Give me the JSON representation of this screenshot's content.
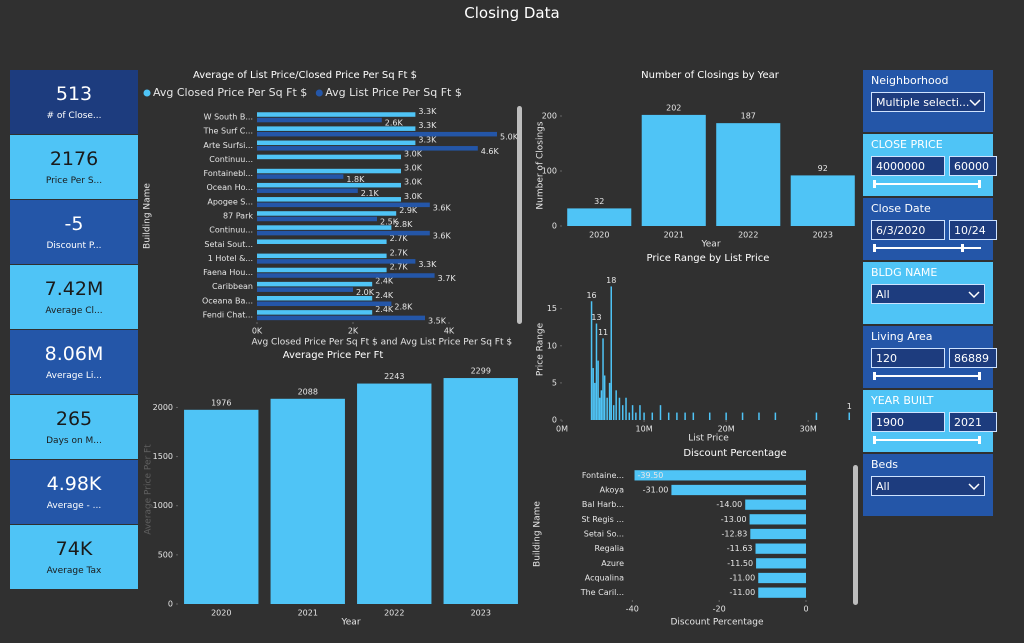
{
  "title": "Closing Data",
  "kpis": [
    {
      "value": "513",
      "label": "# of Close..."
    },
    {
      "value": "2176",
      "label": "Price Per S..."
    },
    {
      "value": "-5",
      "label": "Discount P..."
    },
    {
      "value": "7.42M",
      "label": "Average Cl..."
    },
    {
      "value": "8.06M",
      "label": "Average Li..."
    },
    {
      "value": "265",
      "label": "Days on M..."
    },
    {
      "value": "4.98K",
      "label": "Average - ..."
    },
    {
      "value": "74K",
      "label": "Average Tax"
    }
  ],
  "chart_data": [
    {
      "type": "bar",
      "orientation": "horizontal",
      "title": "Average of List Price/Closed Price Per Sq Ft $",
      "x_label": "Avg Closed Price Per Sq Ft $ and Avg List Price Per Sq Ft $",
      "y_label": "Building Name",
      "categories": [
        "W South B...",
        "The Surf C...",
        "Arte Surfsi...",
        "Continuu...",
        "Fontainebl...",
        "Ocean Ho...",
        "Apogee S...",
        "87 Park",
        "Continuu...",
        "Setai Sout...",
        "1 Hotel &...",
        "Faena Hou...",
        "Caribbean",
        "Oceana Ba...",
        "Fendi Chat..."
      ],
      "series": [
        {
          "name": "Avg Closed Price Per Sq Ft $",
          "color": "#4fc4f6",
          "values": [
            3300,
            3300,
            3300,
            3000,
            3000,
            3000,
            3000,
            2900,
            2800,
            2700,
            2700,
            2700,
            2400,
            2400,
            2400
          ],
          "value_labels": [
            "3.3K",
            "3.3K",
            "3.3K",
            "3.0K",
            "3.0K",
            "3.0K",
            "3.0K",
            "2.9K",
            "2.8K",
            "2.7K",
            "2.7K",
            "2.7K",
            "2.4K",
            "2.4K",
            "2.4K"
          ]
        },
        {
          "name": "Avg List Price Per Sq Ft $",
          "color": "#2456a8",
          "values": [
            2600,
            5000,
            4600,
            null,
            1800,
            2100,
            3600,
            2500,
            3600,
            null,
            3300,
            3700,
            2000,
            2800,
            3500
          ],
          "value_labels": [
            "2.6K",
            "5.0K",
            "4.6K",
            null,
            "1.8K",
            "2.1K",
            "3.6K",
            "2.5K",
            "3.6K",
            null,
            "3.3K",
            "3.7K",
            "2.0K",
            "2.8K",
            "3.5K"
          ]
        }
      ],
      "xlim": [
        0,
        5200
      ],
      "xticks": [
        {
          "value": 0,
          "label": "0K"
        },
        {
          "value": 2000,
          "label": "2K"
        },
        {
          "value": 4000,
          "label": "4K"
        }
      ],
      "legend": "top-left"
    },
    {
      "type": "bar",
      "orientation": "vertical",
      "title": "Average Price Per Ft",
      "x_label": "Year",
      "y_label": "Average Price Per Ft",
      "categories": [
        "2020",
        "2021",
        "2022",
        "2023"
      ],
      "values": [
        1976,
        2088,
        2243,
        2299
      ],
      "color": "#4fc4f6",
      "ylim": [
        0,
        2330
      ],
      "yticks": [
        0,
        500,
        1000,
        1500,
        2000
      ]
    },
    {
      "type": "bar",
      "orientation": "vertical",
      "title": "Number of Closings by Year",
      "x_label": "Year",
      "y_label": "Number of Closings",
      "categories": [
        "2020",
        "2021",
        "2022",
        "2023"
      ],
      "values": [
        32,
        202,
        187,
        92
      ],
      "color": "#4fc4f6",
      "ylim": [
        0,
        220
      ],
      "yticks": [
        0,
        100,
        200
      ]
    },
    {
      "type": "bar",
      "orientation": "vertical",
      "title": "Price Range by List Price",
      "x_label": "List Price",
      "y_label": "Price Range",
      "color": "#4fc4f6",
      "x": [
        3600000,
        3800000,
        4000000,
        4200000,
        4400000,
        4600000,
        4800000,
        5000000,
        5200000,
        5500000,
        5800000,
        6000000,
        6300000,
        6600000,
        7000000,
        7400000,
        7800000,
        8200000,
        8600000,
        9000000,
        9500000,
        10000000,
        11000000,
        12000000,
        13000000,
        14000000,
        15000000,
        16000000,
        18000000,
        20000000,
        22000000,
        24000000,
        26000000,
        31000000,
        35000000
      ],
      "values": [
        16,
        7,
        5,
        13,
        8,
        3,
        4,
        11,
        6,
        3,
        5,
        18,
        2,
        4,
        3,
        2,
        3,
        1,
        2,
        1,
        2,
        1,
        1,
        2,
        1,
        1,
        1,
        1,
        1,
        1,
        1,
        1,
        1,
        1,
        1
      ],
      "value_labels": [
        "16",
        null,
        null,
        "13",
        null,
        null,
        null,
        "11",
        null,
        null,
        null,
        "18",
        null,
        null,
        null,
        null,
        null,
        null,
        null,
        null,
        null,
        null,
        null,
        null,
        null,
        null,
        null,
        null,
        null,
        null,
        null,
        null,
        null,
        null,
        "1"
      ],
      "xlim": [
        0,
        35700000
      ],
      "xticks": [
        {
          "value": 0,
          "label": "0M"
        },
        {
          "value": 10000000,
          "label": "10M"
        },
        {
          "value": 20000000,
          "label": "20M"
        },
        {
          "value": 30000000,
          "label": "30M"
        }
      ],
      "ylim": [
        0,
        19
      ],
      "yticks": [
        0,
        5,
        10,
        15
      ]
    },
    {
      "type": "bar",
      "orientation": "horizontal",
      "title": "Discount Percentage",
      "x_label": "Discount Percentage",
      "y_label": "Building Name",
      "color": "#4fc4f6",
      "categories": [
        "Fontaine...",
        "Akoya",
        "Bal Harb...",
        "St Regis ...",
        "Setai So...",
        "Regalia",
        "Azure",
        "Acqualina",
        "The Caril..."
      ],
      "values": [
        -39.5,
        -31,
        -14,
        -13,
        -12.83,
        -11.63,
        -11.5,
        -11,
        -11
      ],
      "value_labels": [
        "-39.50",
        "-31.00",
        "-14.00",
        "-13.00",
        "-12.83",
        "-11.63",
        "-11.50",
        "-11.00",
        "-11.00"
      ],
      "xlim": [
        -41,
        0
      ],
      "xticks": [
        -40,
        -20,
        0
      ]
    }
  ],
  "filters": [
    {
      "label": "Neighborhood",
      "kind": "dropdown",
      "value": "Multiple selecti..."
    },
    {
      "label": "CLOSE PRICE",
      "kind": "range",
      "from": "4000000",
      "to": "60000"
    },
    {
      "label": "Close Date",
      "kind": "range",
      "from": "6/3/2020",
      "to": "10/24"
    },
    {
      "label": "BLDG NAME",
      "kind": "dropdown",
      "value": "All"
    },
    {
      "label": "Living Area",
      "kind": "range",
      "from": "120",
      "to": "86889"
    },
    {
      "label": "YEAR BUILT",
      "kind": "range",
      "from": "1900",
      "to": "2021"
    },
    {
      "label": "Beds",
      "kind": "dropdown",
      "value": "All"
    }
  ]
}
